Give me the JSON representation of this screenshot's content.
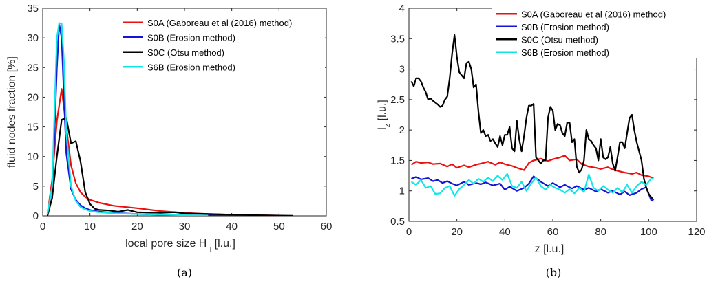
{
  "chart_data": [
    {
      "type": "line",
      "panel_label": "(a)",
      "xlabel": "local pore size H",
      "xlabel_sub": "l",
      "xlabel_unit": "[l.u.]",
      "ylabel": "fluid nodes fraction [%]",
      "xlim": [
        0,
        60
      ],
      "ylim": [
        0,
        35
      ],
      "xticks": [
        0,
        10,
        20,
        30,
        40,
        50,
        60
      ],
      "yticks": [
        0,
        5,
        10,
        15,
        20,
        25,
        30,
        35
      ],
      "legend_position": "top-right",
      "series": [
        {
          "name": "S0A (Gaboreau et al (2016) method)",
          "color": "#e8110f",
          "x": [
            1,
            2,
            3,
            4,
            5,
            6,
            7,
            8,
            9,
            10,
            12,
            15,
            20,
            25,
            30,
            35,
            40,
            45,
            50
          ],
          "y": [
            0.3,
            6,
            16,
            21.4,
            15,
            8.5,
            5.5,
            4,
            3.2,
            2.7,
            2.2,
            1.7,
            1.3,
            0.8,
            0.5,
            0.3,
            0.2,
            0.1,
            0.05
          ]
        },
        {
          "name": "S0B (Erosion method)",
          "color": "#1414d6",
          "x": [
            1,
            2,
            3,
            3.5,
            4,
            4.5,
            5,
            6,
            7,
            8,
            9,
            10,
            12,
            15,
            20,
            25,
            30,
            35,
            40
          ],
          "y": [
            0.3,
            3,
            25,
            32.3,
            30,
            20,
            10.5,
            4.5,
            2.7,
            1.8,
            1.3,
            1,
            0.7,
            0.5,
            0.3,
            0.2,
            0.1,
            0.05,
            0.02
          ]
        },
        {
          "name": "S0C (Otsu method)",
          "color": "#000000",
          "x": [
            1,
            2,
            3,
            4,
            5,
            6,
            7,
            8,
            9,
            10,
            11,
            12,
            14,
            16,
            18,
            20,
            25,
            28,
            30,
            35,
            40,
            45,
            50,
            53
          ],
          "y": [
            0,
            3,
            10,
            16.2,
            16.5,
            12.2,
            12.6,
            9.2,
            4,
            2,
            1.2,
            1,
            0.9,
            0.7,
            1,
            0.6,
            0.5,
            0.6,
            0.4,
            0.3,
            0.2,
            0.1,
            0.05,
            0.02
          ]
        },
        {
          "name": "S6B (Erosion method)",
          "color": "#11e6e6",
          "x": [
            1,
            2,
            3,
            3.5,
            4,
            4.5,
            5,
            6,
            7,
            8,
            9,
            10,
            12,
            15,
            20,
            25,
            30,
            35
          ],
          "y": [
            0.3,
            5,
            30,
            32.5,
            32.4,
            26,
            14,
            5,
            2.5,
            1.5,
            1.1,
            0.8,
            0.6,
            0.4,
            0.3,
            0.2,
            0.1,
            0.05
          ]
        }
      ]
    },
    {
      "type": "line",
      "panel_label": "(b)",
      "xlabel": "z [l.u.]",
      "ylabel": "l",
      "ylabel_sub": "z",
      "ylabel_unit": "[l.u.]",
      "xlim": [
        0,
        120
      ],
      "ylim": [
        0.5,
        4
      ],
      "xticks": [
        0,
        20,
        40,
        60,
        80,
        100,
        120
      ],
      "yticks": [
        0.5,
        1,
        1.5,
        2,
        2.5,
        3,
        3.5,
        4
      ],
      "legend_position": "top-right",
      "series": [
        {
          "name": "S0A (Gaboreau et al (2016) method)",
          "color": "#e8110f",
          "x": [
            1,
            3,
            5,
            8,
            10,
            13,
            16,
            18,
            20,
            23,
            25,
            28,
            30,
            33,
            36,
            38,
            40,
            43,
            45,
            48,
            50,
            52,
            55,
            58,
            60,
            63,
            65,
            67,
            70,
            72,
            75,
            78,
            80,
            83,
            85,
            88,
            90,
            93,
            95,
            97,
            100,
            102
          ],
          "y": [
            1.43,
            1.48,
            1.46,
            1.47,
            1.44,
            1.45,
            1.4,
            1.44,
            1.38,
            1.42,
            1.39,
            1.43,
            1.45,
            1.48,
            1.43,
            1.47,
            1.44,
            1.41,
            1.38,
            1.34,
            1.46,
            1.5,
            1.53,
            1.49,
            1.52,
            1.55,
            1.58,
            1.5,
            1.52,
            1.44,
            1.4,
            1.38,
            1.36,
            1.39,
            1.35,
            1.32,
            1.3,
            1.28,
            1.3,
            1.26,
            1.24,
            1.21
          ]
        },
        {
          "name": "S0B (Erosion method)",
          "color": "#1414d6",
          "x": [
            1,
            3,
            5,
            8,
            10,
            12,
            14,
            16,
            18,
            20,
            23,
            25,
            28,
            30,
            32,
            35,
            38,
            40,
            42,
            45,
            48,
            50,
            52,
            55,
            58,
            60,
            63,
            65,
            68,
            70,
            73,
            75,
            78,
            80,
            83,
            85,
            88,
            90,
            92,
            95,
            97,
            99,
            101,
            102
          ],
          "y": [
            1.2,
            1.23,
            1.19,
            1.21,
            1.16,
            1.18,
            1.13,
            1.16,
            1.12,
            1.09,
            1.15,
            1.1,
            1.13,
            1.11,
            1.14,
            1.09,
            1.12,
            1.02,
            1.07,
            1.0,
            1.05,
            1.12,
            1.24,
            1.15,
            1.08,
            1.13,
            1.06,
            1.1,
            1.04,
            1.08,
            1.02,
            1.05,
            0.99,
            1.03,
            0.97,
            1.0,
            0.94,
            0.99,
            0.93,
            0.97,
            1.03,
            1.06,
            0.85,
            0.83
          ]
        },
        {
          "name": "S0C (Otsu method)",
          "color": "#000000",
          "x": [
            1,
            2,
            3,
            4,
            5,
            6,
            7,
            8,
            9,
            10,
            11,
            12,
            13,
            14,
            15,
            16,
            17,
            18,
            19,
            20,
            21,
            22,
            23,
            24,
            25,
            26,
            27,
            28,
            29,
            30,
            31,
            32,
            33,
            34,
            35,
            36,
            37,
            38,
            39,
            40,
            41,
            42,
            43,
            44,
            45,
            46,
            47,
            48,
            49,
            50,
            51,
            52,
            53,
            54,
            55,
            56,
            57,
            58,
            59,
            60,
            61,
            62,
            63,
            64,
            65,
            66,
            67,
            68,
            69,
            70,
            71,
            72,
            73,
            74,
            75,
            76,
            77,
            78,
            79,
            80,
            81,
            82,
            83,
            84,
            85,
            86,
            87,
            88,
            89,
            90,
            91,
            92,
            93,
            94,
            95,
            96,
            97,
            98,
            99,
            100,
            101,
            102
          ],
          "y": [
            2.8,
            2.72,
            2.85,
            2.85,
            2.8,
            2.7,
            2.62,
            2.5,
            2.52,
            2.48,
            2.45,
            2.42,
            2.38,
            2.4,
            2.5,
            2.55,
            2.85,
            3.25,
            3.56,
            3.2,
            2.95,
            2.9,
            2.85,
            3.1,
            3.12,
            3.0,
            2.7,
            2.75,
            2.3,
            1.95,
            2.0,
            1.9,
            1.92,
            1.82,
            1.85,
            1.78,
            1.72,
            1.9,
            1.75,
            1.92,
            1.92,
            2.05,
            1.7,
            1.65,
            2.15,
            1.85,
            1.65,
            1.9,
            2.2,
            2.4,
            2.4,
            2.43,
            1.55,
            1.5,
            1.45,
            1.5,
            1.5,
            2.2,
            2.38,
            2.32,
            2.0,
            2.1,
            2.08,
            1.95,
            1.9,
            2.12,
            2.12,
            1.8,
            1.85,
            1.4,
            1.3,
            1.35,
            1.5,
            2.0,
            1.85,
            1.82,
            1.75,
            1.7,
            1.5,
            1.85,
            1.55,
            1.52,
            1.55,
            1.72,
            1.45,
            1.33,
            1.55,
            1.8,
            1.8,
            1.7,
            1.95,
            2.2,
            2.25,
            2.0,
            1.8,
            1.65,
            1.5,
            1.2,
            1.05,
            0.95,
            0.9,
            0.85
          ]
        },
        {
          "name": "S6B (Erosion method)",
          "color": "#11e6e6",
          "x": [
            1,
            3,
            5,
            7,
            9,
            11,
            13,
            15,
            17,
            19,
            21,
            23,
            25,
            27,
            29,
            31,
            33,
            35,
            37,
            39,
            41,
            43,
            45,
            47,
            49,
            51,
            53,
            55,
            57,
            59,
            61,
            63,
            65,
            67,
            69,
            71,
            73,
            75,
            77,
            79,
            81,
            83,
            85,
            87,
            89,
            91,
            93,
            95,
            97,
            99,
            101,
            102
          ],
          "y": [
            1.15,
            1.1,
            1.18,
            1.05,
            1.08,
            0.95,
            0.96,
            1.05,
            1.08,
            0.92,
            1.03,
            1.1,
            1.18,
            1.12,
            1.2,
            1.15,
            1.22,
            1.16,
            1.25,
            1.18,
            1.28,
            1.08,
            1.05,
            1.15,
            1.0,
            1.12,
            1.22,
            1.08,
            1.02,
            1.1,
            1.05,
            1.02,
            0.97,
            1.03,
            0.96,
            1.05,
            0.98,
            1.27,
            1.05,
            1.0,
            1.08,
            1.02,
            0.97,
            1.05,
            0.98,
            1.1,
            0.97,
            1.08,
            1.15,
            1.1,
            1.2,
            1.2
          ]
        }
      ]
    }
  ]
}
